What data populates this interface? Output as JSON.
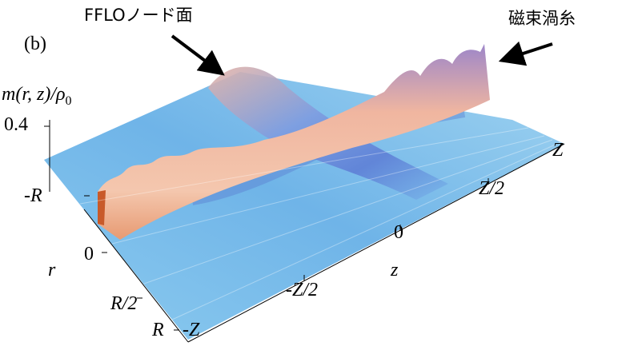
{
  "panel_label": "(b)",
  "annotations": {
    "fflo": "FFLOノード面",
    "vortex": "磁束渦糸"
  },
  "vertical_axis": {
    "label_main": "m(r, z)/ρ",
    "label_sub": "0",
    "tick": "0.4"
  },
  "r_axis": {
    "label": "r",
    "ticks": [
      "-R",
      "0",
      "R/2",
      "R"
    ]
  },
  "z_axis": {
    "label": "z",
    "ticks": [
      "-Z",
      "-Z/2",
      "0",
      "Z/2",
      "Z"
    ]
  }
}
